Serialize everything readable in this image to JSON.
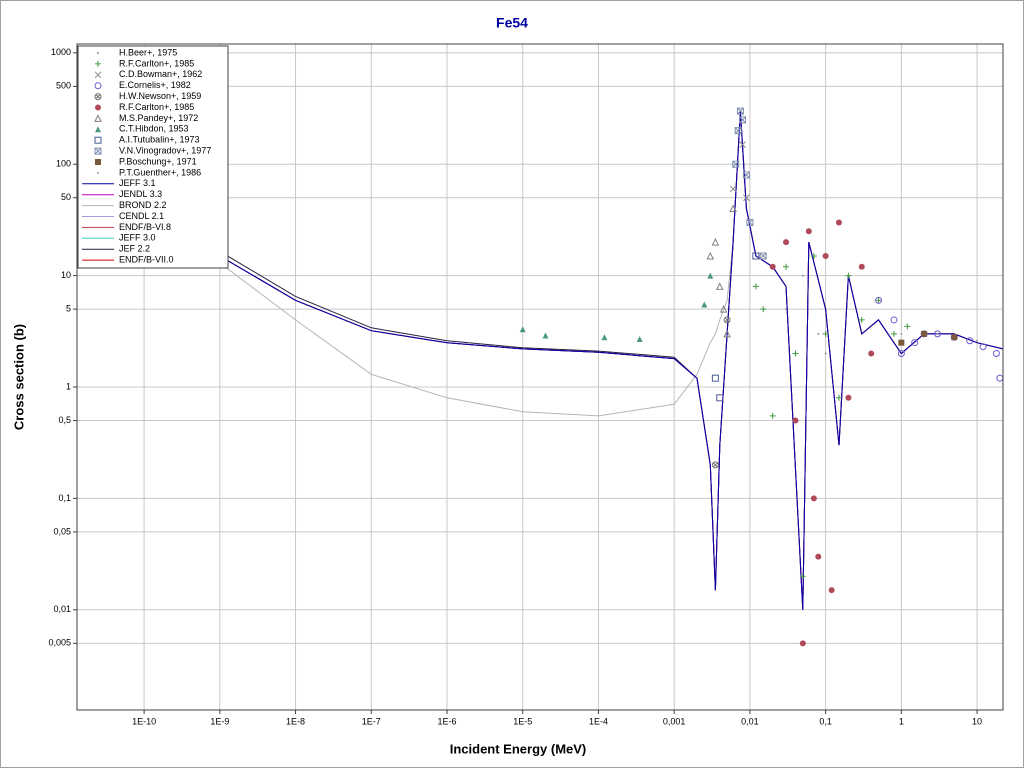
{
  "chart_data": {
    "type": "line",
    "title": "Fe54",
    "x_label": "Incident Energy (MeV)",
    "y_label": "Cross section (b)",
    "xscale": "log",
    "yscale": "log",
    "grid": true,
    "legend": "upper left",
    "xlim": [
      1.3e-11,
      22
    ],
    "ylim": [
      0.00126,
      1200
    ],
    "xticks": [
      {
        "value": 1e-10,
        "label": "1E-10"
      },
      {
        "value": 1e-09,
        "label": "1E-9"
      },
      {
        "value": 1e-08,
        "label": "1E-8"
      },
      {
        "value": 1e-07,
        "label": "1E-7"
      },
      {
        "value": 1e-06,
        "label": "1E-6"
      },
      {
        "value": 1e-05,
        "label": "1E-5"
      },
      {
        "value": 0.0001,
        "label": "1E-4"
      },
      {
        "value": 0.001,
        "label": "0,001"
      },
      {
        "value": 0.01,
        "label": "0,01"
      },
      {
        "value": 0.1,
        "label": "0,1"
      },
      1,
      10
    ],
    "yticks": [
      1000,
      500,
      100,
      50,
      10,
      5,
      1,
      {
        "value": 0.5,
        "label": "0,5"
      },
      {
        "value": 0.1,
        "label": "0,1"
      },
      {
        "value": 0.05,
        "label": "0,05"
      },
      {
        "value": 0.01,
        "label": "0,01"
      },
      {
        "value": 0.005,
        "label": "0,005"
      }
    ],
    "x": [
      1.3e-11,
      1e-10,
      1e-09,
      1e-08,
      1e-07,
      1e-06,
      1e-05,
      0.0001,
      0.001,
      0.002,
      0.003,
      0.0035,
      0.004,
      0.005,
      0.006,
      0.0075,
      0.009,
      0.012,
      0.02,
      0.03,
      0.05,
      0.06,
      0.1,
      0.15,
      0.2,
      0.3,
      0.5,
      1,
      2,
      5,
      10,
      22
    ],
    "series": [
      {
        "name": "H.Beer+, 1975",
        "marker": "dot",
        "color": "#909090",
        "x": [
          0.03,
          0.05,
          0.08,
          0.1
        ],
        "values": [
          5,
          10,
          3,
          2
        ]
      },
      {
        "name": "R.F.Carlton+, 1985",
        "marker": "plus",
        "color": "#3f9a3f",
        "x": [
          0.012,
          0.015,
          0.02,
          0.03,
          0.04,
          0.05,
          0.07,
          0.1,
          0.15,
          0.2,
          0.3,
          0.5,
          0.8,
          1.2,
          2
        ],
        "values": [
          8,
          5,
          0.55,
          12,
          2,
          0.02,
          15,
          3,
          0.8,
          10,
          4,
          6,
          3,
          3.5,
          3
        ]
      },
      {
        "name": "C.D.Bowman+, 1962",
        "marker": "cross",
        "color": "#8a8a8a",
        "x": [
          0.006,
          0.007,
          0.0075,
          0.008,
          0.009
        ],
        "values": [
          60,
          200,
          300,
          150,
          50
        ]
      },
      {
        "name": "E.Cornelis+, 1982",
        "marker": "circle",
        "color": "#6a5acd",
        "x": [
          0.5,
          0.8,
          1,
          1.5,
          2,
          3,
          5,
          8,
          12,
          18,
          20
        ],
        "values": [
          6,
          4,
          2,
          2.5,
          3,
          3,
          2.8,
          2.6,
          2.3,
          2,
          1.2
        ]
      },
      {
        "name": "H.W.Newson+, 1959",
        "marker": "circlex",
        "color": "#707070",
        "x": [
          0.0035,
          0.005
        ],
        "values": [
          0.2,
          4
        ]
      },
      {
        "name": "R.F.Carlton+, 1985",
        "marker": "dotbig",
        "color": "#b04a5a",
        "x": [
          0.02,
          0.03,
          0.04,
          0.05,
          0.06,
          0.07,
          0.08,
          0.1,
          0.12,
          0.15,
          0.2,
          0.3,
          0.4
        ],
        "values": [
          12,
          20,
          0.5,
          0.005,
          25,
          0.1,
          0.03,
          15,
          0.015,
          30,
          0.8,
          12,
          2
        ]
      },
      {
        "name": "M.S.Pandey+, 1972",
        "marker": "triangle",
        "color": "#808080",
        "x": [
          0.003,
          0.0035,
          0.004,
          0.0045,
          0.005,
          0.006
        ],
        "values": [
          15,
          20,
          8,
          5,
          3,
          40
        ]
      },
      {
        "name": "C.T.Hibdon, 1953",
        "marker": "trianglefill",
        "color": "#4a9a7a",
        "x": [
          1e-05,
          2e-05,
          0.00012,
          0.00035,
          0.0025,
          0.003
        ],
        "values": [
          3.3,
          2.9,
          2.8,
          2.7,
          5.5,
          10
        ]
      },
      {
        "name": "A.I.Tutubalin+, 1973",
        "marker": "square",
        "color": "#4a5a9a",
        "x": [
          0.0035,
          0.004,
          0.012
        ],
        "values": [
          1.2,
          0.8,
          15
        ]
      },
      {
        "name": "V.N.Vinogradov+, 1977",
        "marker": "squarex",
        "color": "#8090b0",
        "x": [
          0.0065,
          0.007,
          0.0075,
          0.008,
          0.009,
          0.01,
          0.015
        ],
        "values": [
          100,
          200,
          300,
          250,
          80,
          30,
          15
        ]
      },
      {
        "name": "P.Boschung+, 1971",
        "marker": "squarefill",
        "color": "#7a5a3a",
        "x": [
          1,
          2,
          5
        ],
        "values": [
          2.5,
          3,
          2.8
        ]
      },
      {
        "name": "P.T.Guenther+, 1986",
        "marker": "dot",
        "color": "#a0a0a0",
        "x": [
          1,
          3,
          10
        ],
        "values": [
          3,
          3,
          2.6
        ]
      },
      {
        "name": "JEFF 3.1",
        "color": "#0000a0",
        "values": [
          130,
          48,
          15,
          6,
          3.2,
          2.5,
          2.2,
          2.05,
          1.8,
          1.2,
          0.2,
          0.015,
          0.3,
          3,
          20,
          300,
          40,
          15,
          12,
          8,
          0.01,
          20,
          5,
          0.3,
          10,
          3,
          4,
          2,
          3,
          3,
          2.5,
          2.2
        ]
      },
      {
        "name": "JENDL 3.3",
        "color": "#c000c0",
        "values": [
          130,
          48,
          15,
          6,
          3.2,
          2.5,
          2.2,
          2.05,
          1.8,
          1.2,
          0.2,
          0.015,
          0.3,
          3,
          20,
          300,
          40,
          15,
          12,
          8,
          0.01,
          20,
          5,
          0.3,
          10,
          3,
          4,
          2,
          3,
          3,
          2.5,
          2.2
        ]
      },
      {
        "name": "BROND 2.2",
        "color": "#b4b4b4",
        "values": [
          120,
          40,
          13,
          4,
          1.3,
          0.8,
          0.6,
          0.55,
          0.7,
          1.3,
          2.5,
          3,
          4,
          6,
          20,
          300,
          40,
          15,
          12,
          8,
          0.01,
          20,
          5,
          0.3,
          10,
          3,
          4,
          2,
          3,
          3,
          2.5,
          2.2
        ]
      },
      {
        "name": "CENDL 2.1",
        "color": "#a0a0e0",
        "values": [
          130,
          48,
          15,
          6,
          3.2,
          2.5,
          2.2,
          2.05,
          1.8,
          1.2,
          0.2,
          0.015,
          0.3,
          3,
          20,
          300,
          40,
          15,
          12,
          8,
          0.01,
          20,
          5,
          0.3,
          10,
          3,
          4,
          2,
          3,
          3,
          2.5,
          2.2
        ]
      },
      {
        "name": "ENDF/B-VI.8",
        "color": "#c04040",
        "values": [
          130,
          48,
          15,
          6,
          3.2,
          2.5,
          2.2,
          2.05,
          1.8,
          1.2,
          0.2,
          0.015,
          0.3,
          3,
          20,
          300,
          40,
          15,
          12,
          8,
          0.01,
          20,
          5,
          0.3,
          10,
          3,
          4,
          2,
          3,
          3,
          2.5,
          2.2
        ]
      },
      {
        "name": "JEFF 3.0",
        "color": "#40d0d0",
        "values": [
          130,
          48,
          15,
          6,
          3.2,
          2.5,
          2.2,
          2.05,
          1.8,
          1.2,
          0.2,
          0.015,
          0.3,
          3,
          20,
          300,
          40,
          15,
          12,
          8,
          0.01,
          20,
          5,
          0.3,
          10,
          3,
          4,
          2,
          3,
          3,
          2.5,
          2.2
        ]
      },
      {
        "name": "JEF 2.2",
        "color": "#202040",
        "values": [
          140,
          52,
          16.5,
          6.5,
          3.4,
          2.6,
          2.25,
          2.1,
          1.85,
          1.2,
          0.2,
          0.015,
          0.3,
          3,
          20,
          300,
          40,
          15,
          12,
          8,
          0.01,
          20,
          5,
          0.3,
          10,
          3,
          4,
          2,
          3,
          3,
          2.5,
          2.2
        ]
      },
      {
        "name": "ENDF/B-VII.0",
        "color": "#d00000",
        "values": [
          130,
          48,
          15,
          6,
          3.2,
          2.5,
          2.2,
          2.05,
          1.8,
          1.2,
          0.2,
          0.015,
          0.3,
          3,
          20,
          300,
          40,
          15,
          12,
          8,
          0.01,
          20,
          5,
          0.3,
          10,
          3,
          4,
          2,
          3,
          3,
          2.5,
          2.2
        ]
      }
    ]
  }
}
